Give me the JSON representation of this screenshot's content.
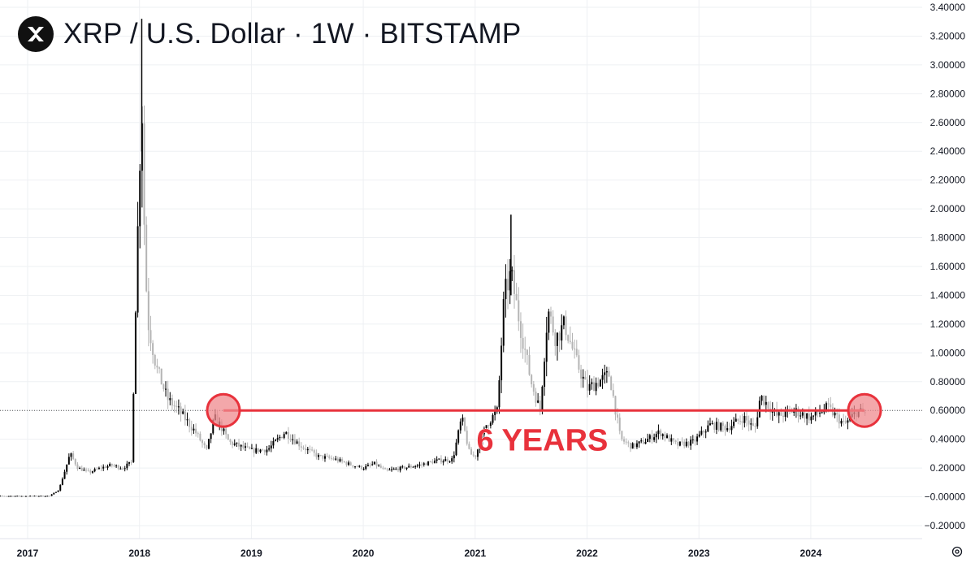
{
  "header": {
    "title": "XRP / U.S. Dollar · 1W · BITSTAMP",
    "logo_icon": "xrp-logo-icon"
  },
  "colors": {
    "background": "#ffffff",
    "grid": "#eef0f3",
    "axis_text": "#131722",
    "candle_up": "#000000",
    "candle_down": "#b4b4b4",
    "annotation": "#e8323c",
    "annotation_fill": "#ef8a8e"
  },
  "settings_icon": "gear-icon",
  "chart_data": {
    "type": "candlestick",
    "title": "XRP / U.S. Dollar · 1W · BITSTAMP",
    "ylim": [
      -0.2,
      3.4
    ],
    "y_ticks": [
      "3.40000",
      "3.20000",
      "3.00000",
      "2.80000",
      "2.60000",
      "2.40000",
      "2.20000",
      "2.00000",
      "1.80000",
      "1.60000",
      "1.40000",
      "1.20000",
      "1.00000",
      "0.80000",
      "0.60000",
      "0.40000",
      "0.20000",
      "−0.00000",
      "−0.20000"
    ],
    "x_ticks": [
      "2017",
      "2018",
      "2019",
      "2020",
      "2021",
      "2022",
      "2023",
      "2024"
    ],
    "grid": true,
    "current_price_line": 0.6,
    "series": [
      {
        "x": [
          2016.6,
          2017.0,
          2017.2,
          2017.28,
          2017.38,
          2017.45,
          2017.55,
          2017.65,
          2017.75,
          2017.85,
          2017.93,
          2017.96,
          2017.99,
          2018.02,
          2018.05,
          2018.08,
          2018.15,
          2018.25,
          2018.35,
          2018.45,
          2018.5,
          2018.6,
          2018.67,
          2018.72,
          2018.8,
          2018.9,
          2019.0,
          2019.15,
          2019.3,
          2019.45,
          2019.6,
          2019.75,
          2019.9,
          2020.0,
          2020.1,
          2020.2,
          2020.35,
          2020.5,
          2020.65,
          2020.8,
          2020.88,
          2020.95,
          2021.0,
          2021.1,
          2021.2,
          2021.26,
          2021.32,
          2021.4,
          2021.5,
          2021.58,
          2021.65,
          2021.72,
          2021.8,
          2021.9,
          2022.0,
          2022.1,
          2022.2,
          2022.3,
          2022.4,
          2022.5,
          2022.65,
          2022.8,
          2022.95,
          2023.1,
          2023.25,
          2023.4,
          2023.5,
          2023.55,
          2023.7,
          2023.85,
          2024.0,
          2024.15,
          2024.3,
          2024.42,
          2024.5
        ],
        "y": [
          0.006,
          0.006,
          0.007,
          0.05,
          0.3,
          0.2,
          0.17,
          0.2,
          0.22,
          0.2,
          0.24,
          1.2,
          2.0,
          2.8,
          1.6,
          1.2,
          0.9,
          0.68,
          0.6,
          0.5,
          0.45,
          0.32,
          0.55,
          0.5,
          0.38,
          0.35,
          0.32,
          0.33,
          0.45,
          0.35,
          0.28,
          0.26,
          0.22,
          0.2,
          0.23,
          0.18,
          0.2,
          0.22,
          0.25,
          0.26,
          0.55,
          0.3,
          0.28,
          0.5,
          0.6,
          1.4,
          1.55,
          1.2,
          0.8,
          0.6,
          1.3,
          1.1,
          1.2,
          0.95,
          0.75,
          0.8,
          0.85,
          0.4,
          0.35,
          0.38,
          0.45,
          0.36,
          0.38,
          0.5,
          0.48,
          0.55,
          0.47,
          0.7,
          0.56,
          0.6,
          0.55,
          0.62,
          0.5,
          0.6,
          0.57
        ]
      }
    ],
    "annotations": [
      {
        "type": "horizontal-line",
        "y": 0.6,
        "x_start": 2018.75,
        "x_end": 2024.48
      },
      {
        "type": "circle",
        "x": 2018.75,
        "y": 0.6
      },
      {
        "type": "circle",
        "x": 2024.48,
        "y": 0.6
      },
      {
        "type": "text",
        "text": "6 YEARS",
        "x": 2021.6,
        "y": 0.4
      }
    ]
  }
}
